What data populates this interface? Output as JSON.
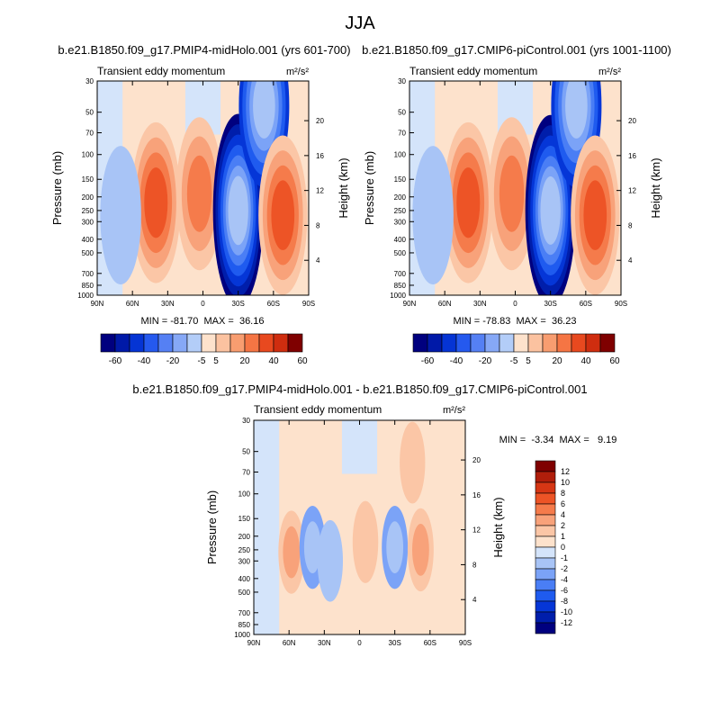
{
  "main_title": "JJA",
  "panels": [
    {
      "title": "b.e21.B1850.f09_g17.PMIP4-midHolo.001 (yrs 601-700)",
      "subtitle": "Transient eddy momentum",
      "units": "m²/s²",
      "stats": "MIN = -81.70  MAX =  36.16"
    },
    {
      "title": "b.e21.B1850.f09_g17.CMIP6-piControl.001 (yrs 1001-1100)",
      "subtitle": "Transient eddy momentum",
      "units": "m²/s²",
      "stats": "MIN = -78.83  MAX =  36.23"
    },
    {
      "title": "b.e21.B1850.f09_g17.PMIP4-midHolo.001 - b.e21.B1850.f09_g17.CMIP6-piControl.001",
      "subtitle": "Transient eddy momentum",
      "units": "m²/s²",
      "stats": "MIN =  -3.34  MAX =   9.19"
    }
  ],
  "chart_data": [
    {
      "type": "heatmap",
      "title": "b.e21.B1850.f09_g17.PMIP4-midHolo.001 (yrs 601-700)",
      "subtitle": "Transient eddy momentum",
      "units": "m2/s2",
      "xlabel": "",
      "ylabel": "Pressure (mb)",
      "y2label": "Height (km)",
      "x_ticks": [
        "90N",
        "60N",
        "30N",
        "0",
        "30S",
        "60S",
        "90S"
      ],
      "y_ticks": [
        30,
        50,
        70,
        100,
        150,
        200,
        250,
        300,
        400,
        500,
        700,
        850,
        1000
      ],
      "y2_ticks": [
        4,
        8,
        12,
        16,
        20
      ],
      "y_scale": "log",
      "ylim": [
        1000,
        30
      ],
      "xlim": [
        90,
        -90
      ],
      "levels": [
        -60,
        -50,
        -40,
        -30,
        -20,
        -10,
        -5,
        0,
        5,
        10,
        20,
        30,
        40,
        50,
        60
      ],
      "colorbar_labels": [
        "-60",
        "-40",
        "-20",
        "-5",
        "5",
        "20",
        "40",
        "60"
      ],
      "min": -81.7,
      "max": 36.16,
      "features": [
        {
          "lat": 40,
          "p": 220,
          "value": 36
        },
        {
          "lat": 3,
          "p": 190,
          "value": 25
        },
        {
          "lat": -30,
          "p": 250,
          "value": -81
        },
        {
          "lat": -52,
          "p": 45,
          "value": -40
        },
        {
          "lat": -68,
          "p": 270,
          "value": 34
        },
        {
          "lat": 70,
          "p": 270,
          "value": -5
        }
      ]
    },
    {
      "type": "heatmap",
      "title": "b.e21.B1850.f09_g17.CMIP6-piControl.001 (yrs 1001-1100)",
      "subtitle": "Transient eddy momentum",
      "units": "m2/s2",
      "xlabel": "",
      "ylabel": "Pressure (mb)",
      "y2label": "Height (km)",
      "x_ticks": [
        "90N",
        "60N",
        "30N",
        "0",
        "30S",
        "60S",
        "90S"
      ],
      "y_ticks": [
        30,
        50,
        70,
        100,
        150,
        200,
        250,
        300,
        400,
        500,
        700,
        850,
        1000
      ],
      "y2_ticks": [
        4,
        8,
        12,
        16,
        20
      ],
      "y_scale": "log",
      "ylim": [
        1000,
        30
      ],
      "xlim": [
        90,
        -90
      ],
      "levels": [
        -60,
        -50,
        -40,
        -30,
        -20,
        -10,
        -5,
        0,
        5,
        10,
        20,
        30,
        40,
        50,
        60
      ],
      "colorbar_labels": [
        "-60",
        "-40",
        "-20",
        "-5",
        "5",
        "20",
        "40",
        "60"
      ],
      "min": -78.83,
      "max": 36.23,
      "features": [
        {
          "lat": 40,
          "p": 220,
          "value": 36
        },
        {
          "lat": 3,
          "p": 190,
          "value": 25
        },
        {
          "lat": -30,
          "p": 250,
          "value": -78
        },
        {
          "lat": -52,
          "p": 45,
          "value": -40
        },
        {
          "lat": -68,
          "p": 270,
          "value": 34
        },
        {
          "lat": 70,
          "p": 270,
          "value": -5
        }
      ]
    },
    {
      "type": "heatmap",
      "title": "b.e21.B1850.f09_g17.PMIP4-midHolo.001 - b.e21.B1850.f09_g17.CMIP6-piControl.001",
      "subtitle": "Transient eddy momentum",
      "units": "m2/s2",
      "xlabel": "",
      "ylabel": "Pressure (mb)",
      "y2label": "Height (km)",
      "x_ticks": [
        "90N",
        "60N",
        "30N",
        "0",
        "30S",
        "60S",
        "90S"
      ],
      "y_ticks": [
        30,
        50,
        70,
        100,
        150,
        200,
        250,
        300,
        400,
        500,
        700,
        850,
        1000
      ],
      "y2_ticks": [
        4,
        8,
        12,
        16,
        20
      ],
      "y_scale": "log",
      "ylim": [
        1000,
        30
      ],
      "xlim": [
        90,
        -90
      ],
      "levels": [
        -12,
        -10,
        -8,
        -6,
        -4,
        -2,
        -1,
        0,
        1,
        2,
        4,
        6,
        8,
        10,
        12
      ],
      "colorbar_labels": [
        "12",
        "10",
        "8",
        "6",
        "4",
        "2",
        "1",
        "0",
        "-1",
        "-2",
        "-4",
        "-6",
        "-8",
        "-10",
        "-12"
      ],
      "min": -3.34,
      "max": 9.19,
      "features": [
        {
          "lat": 58,
          "p": 260,
          "value": 3
        },
        {
          "lat": 40,
          "p": 240,
          "value": -3
        },
        {
          "lat": 25,
          "p": 300,
          "value": -1
        },
        {
          "lat": -5,
          "p": 220,
          "value": 1.5
        },
        {
          "lat": -30,
          "p": 240,
          "value": -3
        },
        {
          "lat": -52,
          "p": 250,
          "value": 3
        },
        {
          "lat": -45,
          "p": 60,
          "value": 1
        }
      ]
    }
  ],
  "colors": {
    "palette_16": [
      "#00007f",
      "#001eab",
      "#0536d7",
      "#1f5bef",
      "#4a7ef5",
      "#7ba3f7",
      "#a8c4f6",
      "#d4e4fa",
      "#fde2cc",
      "#fbc6a6",
      "#f8a27a",
      "#f57b4b",
      "#ed5426",
      "#d63614",
      "#b01e0b",
      "#7f0000"
    ],
    "colorbar_14": [
      "#00007f",
      "#0019a8",
      "#0534d4",
      "#2559ee",
      "#5580f4",
      "#86a8f6",
      "#b3cdf8",
      "#fde2cc",
      "#fbc2a0",
      "#f89d70",
      "#f57544",
      "#e8491f",
      "#cf2d0f",
      "#7f0000"
    ]
  }
}
